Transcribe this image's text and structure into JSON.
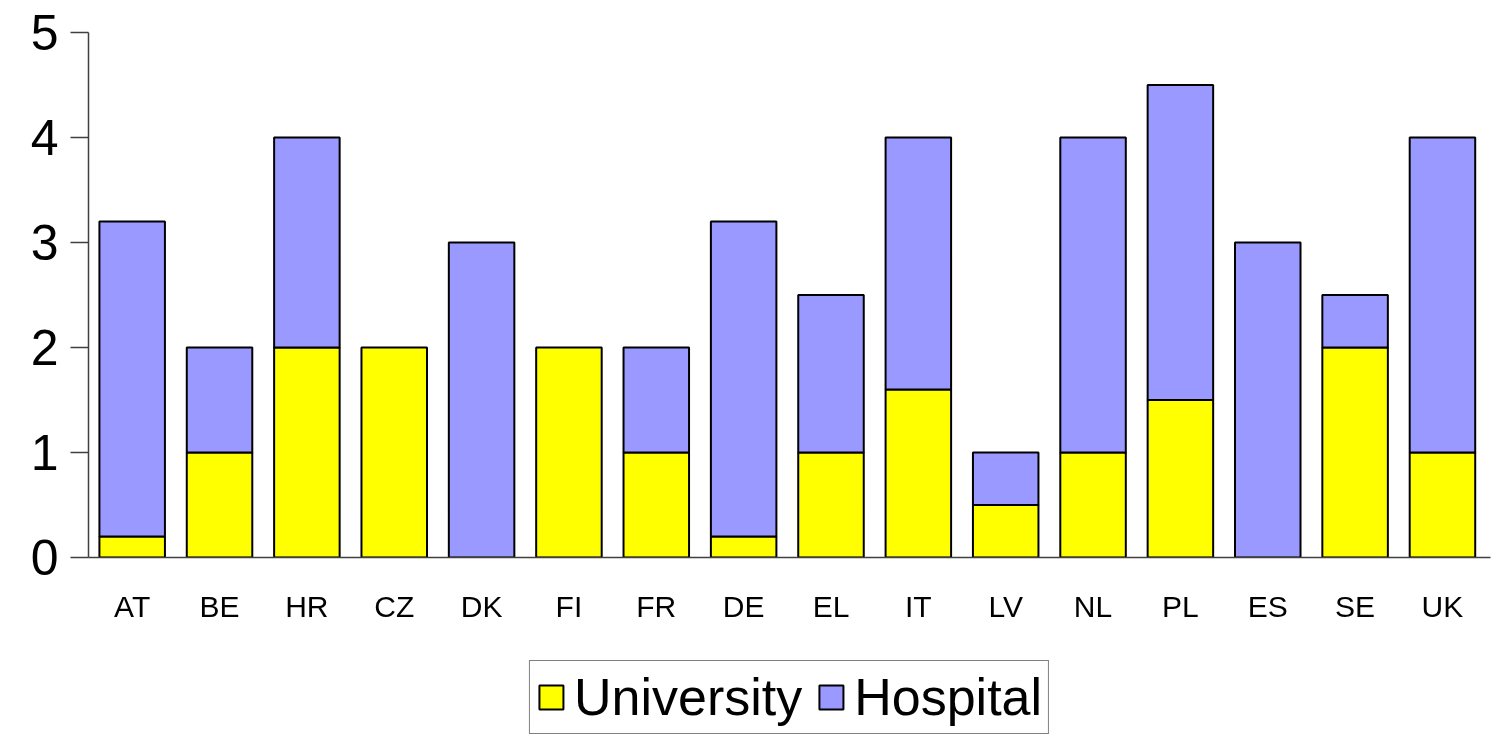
{
  "chart_data": {
    "type": "bar",
    "stacked": true,
    "categories": [
      "AT",
      "BE",
      "HR",
      "CZ",
      "DK",
      "FI",
      "FR",
      "DE",
      "EL",
      "IT",
      "LV",
      "NL",
      "PL",
      "ES",
      "SE",
      "UK"
    ],
    "series": [
      {
        "name": "University",
        "color": "#ffff00",
        "values": [
          0.2,
          1,
          2,
          2,
          0,
          2,
          1,
          0.2,
          1,
          1.6,
          0.5,
          1,
          1.5,
          0,
          2,
          1
        ]
      },
      {
        "name": "Hospital",
        "color": "#9999ff",
        "values": [
          3,
          1,
          2,
          0,
          3,
          0,
          1,
          3,
          1.5,
          2.4,
          0.5,
          3,
          3,
          3,
          0.5,
          3
        ]
      }
    ],
    "ylim": [
      0,
      5
    ],
    "yticks": [
      0,
      1,
      2,
      3,
      4,
      5
    ],
    "grid": false,
    "legend": "bottom"
  }
}
